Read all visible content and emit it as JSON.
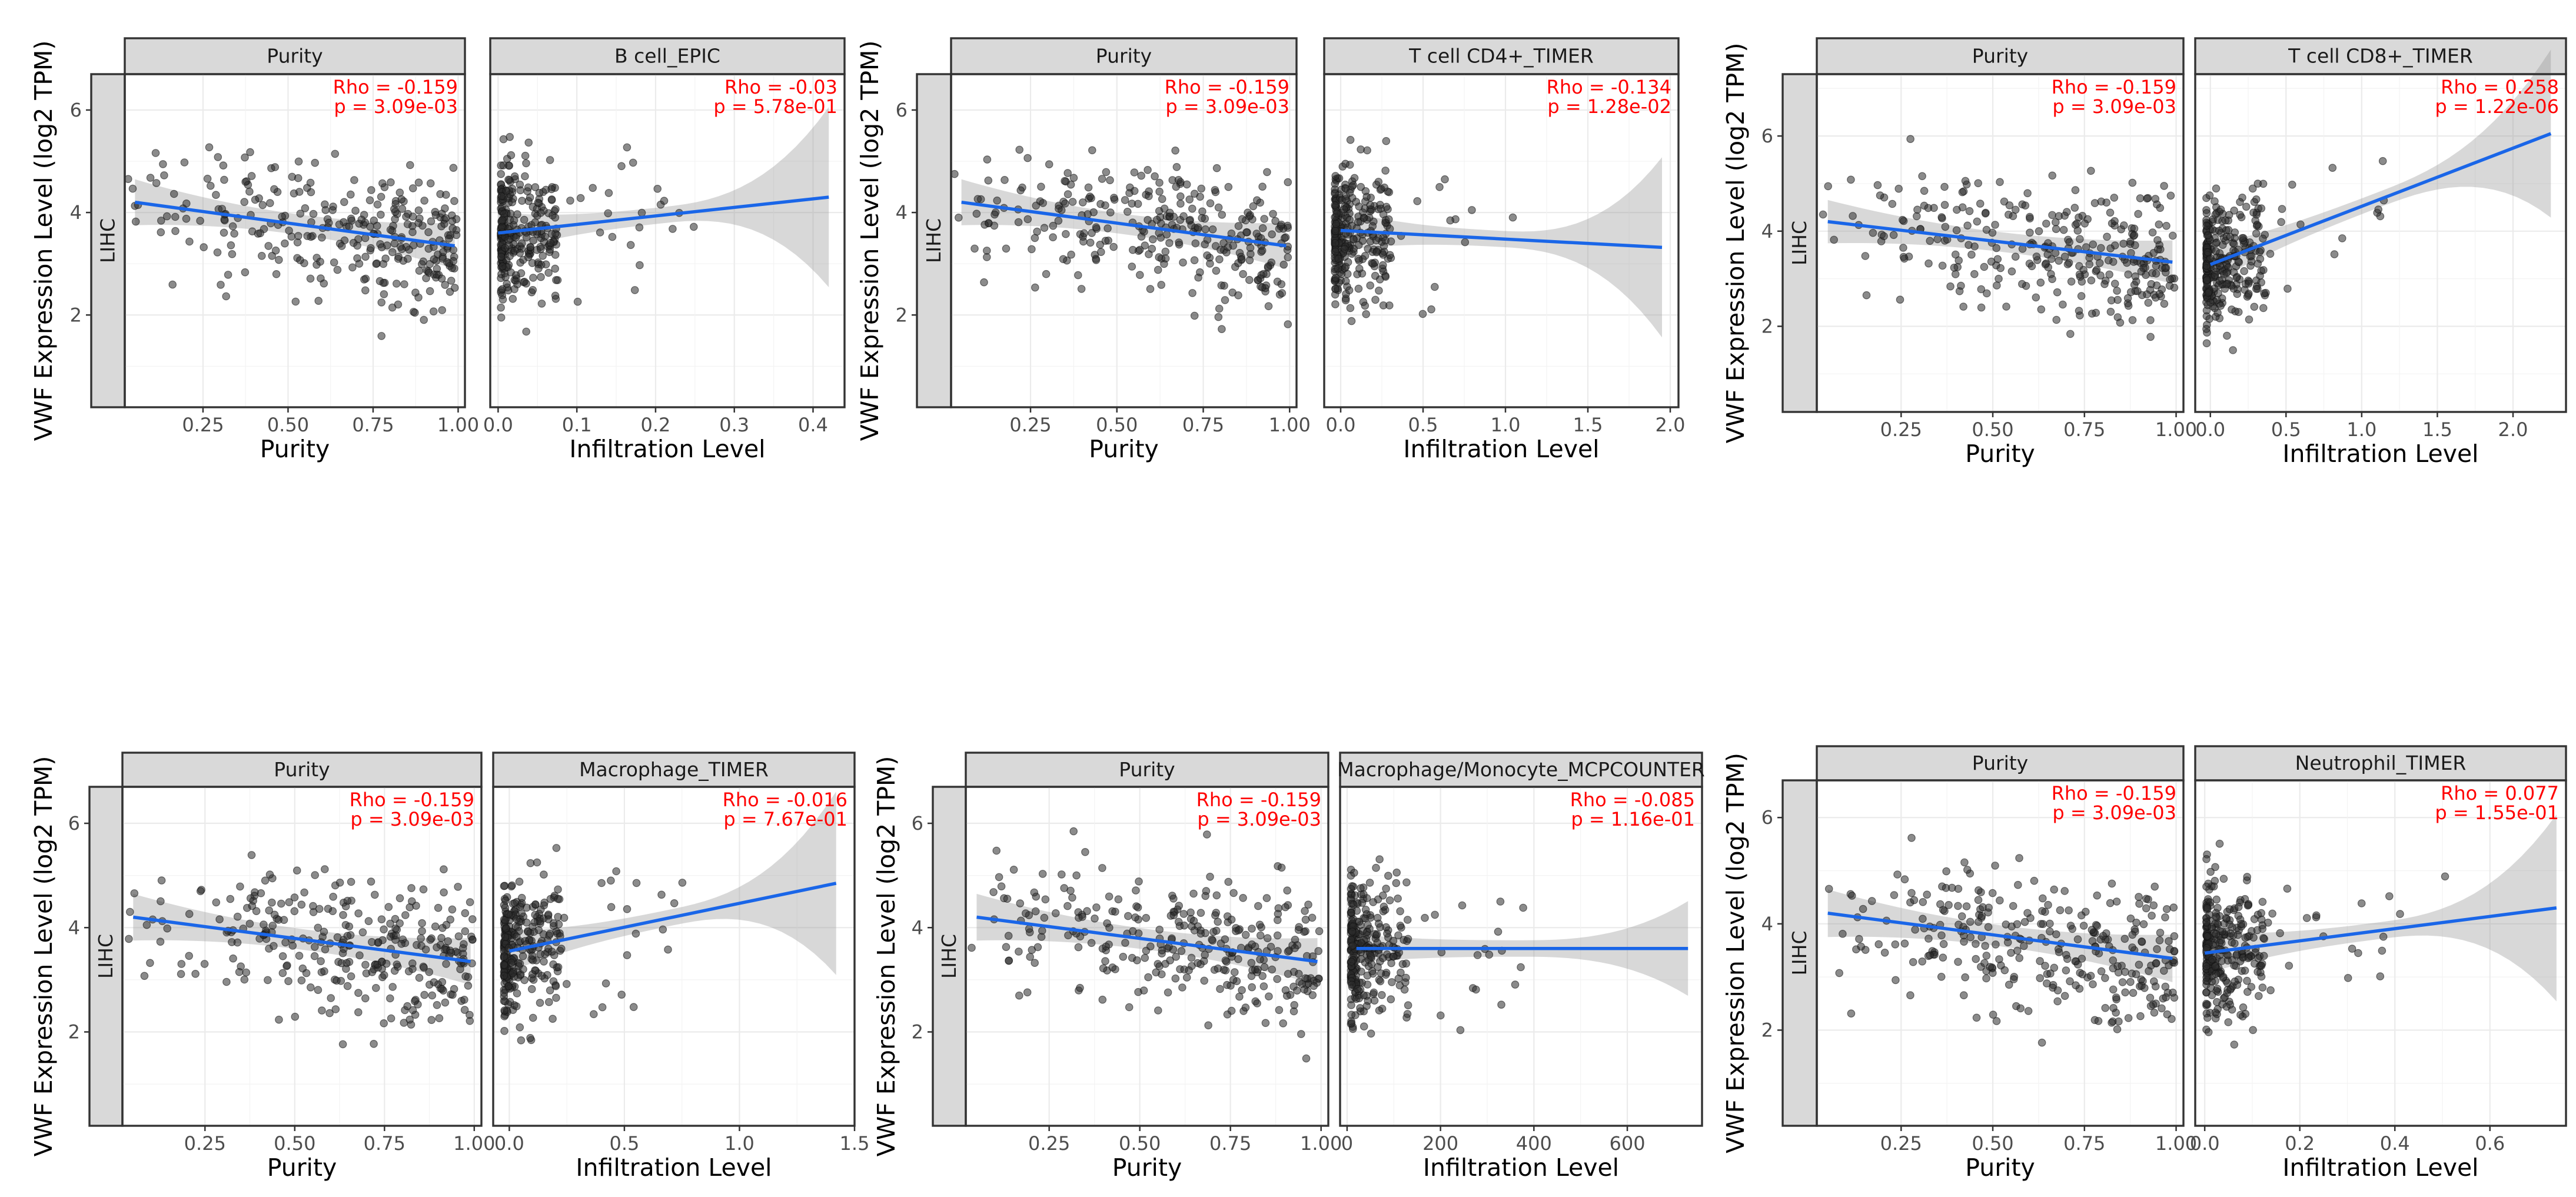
{
  "figure": {
    "ylabel": "VWF Expression Level (log2 TPM)",
    "row_label": "LIHC"
  },
  "chart_data": [
    {
      "type": "scatter",
      "panels": [
        {
          "strip": "Purity",
          "xlabel": "Purity",
          "xlim": [
            0.02,
            1.02
          ],
          "xticks": [
            0.25,
            0.5,
            0.75,
            1.0
          ],
          "xtick_labels": [
            "0.25",
            "0.50",
            "0.75",
            "1.00"
          ],
          "fit": {
            "x": [
              0.05,
              0.99
            ],
            "y": [
              4.2,
              3.35
            ]
          },
          "rho": "Rho = -0.159",
          "p": "p = 3.09e-03"
        },
        {
          "strip": "B cell_EPIC",
          "xlabel": "Infiltration Level",
          "xlim": [
            -0.01,
            0.44
          ],
          "xticks": [
            0.0,
            0.1,
            0.2,
            0.3,
            0.4
          ],
          "xtick_labels": [
            "0.0",
            "0.1",
            "0.2",
            "0.3",
            "0.4"
          ],
          "fit": {
            "x": [
              0.0,
              0.42
            ],
            "y": [
              3.6,
              4.3
            ]
          },
          "rho": "Rho = -0.03",
          "p": "p = 5.78e-01"
        }
      ],
      "ylim": [
        0.2,
        6.7
      ],
      "yticks": [
        2,
        4,
        6
      ],
      "ytick_labels": [
        "2",
        "4",
        "6"
      ]
    },
    {
      "type": "scatter",
      "panels": [
        {
          "strip": "Purity",
          "xlabel": "Purity",
          "xlim": [
            0.02,
            1.02
          ],
          "xticks": [
            0.25,
            0.5,
            0.75,
            1.0
          ],
          "xtick_labels": [
            "0.25",
            "0.50",
            "0.75",
            "1.00"
          ],
          "fit": {
            "x": [
              0.05,
              0.99
            ],
            "y": [
              4.2,
              3.35
            ]
          },
          "rho": "Rho = -0.159",
          "p": "p = 3.09e-03"
        },
        {
          "strip": "T cell CD4+_TIMER",
          "xlabel": "Infiltration Level",
          "xlim": [
            -0.1,
            2.05
          ],
          "xticks": [
            0.0,
            0.5,
            1.0,
            1.5,
            2.0
          ],
          "xtick_labels": [
            "0.0",
            "0.5",
            "1.0",
            "1.5",
            "2.0"
          ],
          "fit": {
            "x": [
              0.0,
              1.95
            ],
            "y": [
              3.65,
              3.32
            ]
          },
          "rho": "Rho = -0.134",
          "p": "p = 1.28e-02"
        }
      ],
      "ylim": [
        0.2,
        6.7
      ],
      "yticks": [
        2,
        4,
        6
      ],
      "ytick_labels": [
        "2",
        "4",
        "6"
      ]
    },
    {
      "type": "scatter",
      "panels": [
        {
          "strip": "Purity",
          "xlabel": "Purity",
          "xlim": [
            0.02,
            1.02
          ],
          "xticks": [
            0.25,
            0.5,
            0.75,
            1.0
          ],
          "xtick_labels": [
            "0.25",
            "0.50",
            "0.75",
            "1.00"
          ],
          "fit": {
            "x": [
              0.05,
              0.99
            ],
            "y": [
              4.2,
              3.35
            ]
          },
          "rho": "Rho = -0.159",
          "p": "p = 3.09e-03"
        },
        {
          "strip": "T cell CD8+_TIMER",
          "xlabel": "Infiltration Level",
          "xlim": [
            -0.1,
            2.35
          ],
          "xticks": [
            0.0,
            0.5,
            1.0,
            1.5,
            2.0
          ],
          "xtick_labels": [
            "0.0",
            "0.5",
            "1.0",
            "1.5",
            "2.0"
          ],
          "fit": {
            "x": [
              0.0,
              2.25
            ],
            "y": [
              3.3,
              6.05
            ]
          },
          "rho": "Rho = 0.258",
          "p": "p = 1.22e-06"
        }
      ],
      "ylim": [
        0.2,
        7.3
      ],
      "yticks": [
        2,
        4,
        6
      ],
      "ytick_labels": [
        "2",
        "4",
        "6"
      ]
    },
    {
      "type": "scatter",
      "panels": [
        {
          "strip": "Purity",
          "xlabel": "Purity",
          "xlim": [
            0.02,
            1.02
          ],
          "xticks": [
            0.25,
            0.5,
            0.75,
            1.0
          ],
          "xtick_labels": [
            "0.25",
            "0.50",
            "0.75",
            "1.00"
          ],
          "fit": {
            "x": [
              0.05,
              0.99
            ],
            "y": [
              4.2,
              3.35
            ]
          },
          "rho": "Rho = -0.159",
          "p": "p = 3.09e-03"
        },
        {
          "strip": "Macrophage_TIMER",
          "xlabel": "Infiltration Level",
          "xlim": [
            -0.07,
            1.5
          ],
          "xticks": [
            0.0,
            0.5,
            1.0,
            1.5
          ],
          "xtick_labels": [
            "0.0",
            "0.5",
            "1.0",
            "1.5"
          ],
          "fit": {
            "x": [
              0.0,
              1.42
            ],
            "y": [
              3.55,
              4.85
            ]
          },
          "rho": "Rho = -0.016",
          "p": "p = 7.67e-01"
        }
      ],
      "ylim": [
        0.2,
        6.7
      ],
      "yticks": [
        2,
        4,
        6
      ],
      "ytick_labels": [
        "2",
        "4",
        "6"
      ]
    },
    {
      "type": "scatter",
      "panels": [
        {
          "strip": "Purity",
          "xlabel": "Purity",
          "xlim": [
            0.02,
            1.02
          ],
          "xticks": [
            0.25,
            0.5,
            0.75,
            1.0
          ],
          "xtick_labels": [
            "0.25",
            "0.50",
            "0.75",
            "1.00"
          ],
          "fit": {
            "x": [
              0.05,
              0.99
            ],
            "y": [
              4.2,
              3.35
            ]
          },
          "rho": "Rho = -0.159",
          "p": "p = 3.09e-03"
        },
        {
          "strip": "Macrophage/Monocyte_MCPCOUNTER",
          "xlabel": "Infiltration Level",
          "xlim": [
            -15,
            760
          ],
          "xticks": [
            0,
            200,
            400,
            600
          ],
          "xtick_labels": [
            "0",
            "200",
            "400",
            "600"
          ],
          "fit": {
            "x": [
              20,
              730
            ],
            "y": [
              3.6,
              3.6
            ]
          },
          "rho": "Rho = -0.085",
          "p": "p = 1.16e-01"
        }
      ],
      "ylim": [
        0.2,
        6.7
      ],
      "yticks": [
        2,
        4,
        6
      ],
      "ytick_labels": [
        "2",
        "4",
        "6"
      ]
    },
    {
      "type": "scatter",
      "panels": [
        {
          "strip": "Purity",
          "xlabel": "Purity",
          "xlim": [
            0.02,
            1.02
          ],
          "xticks": [
            0.25,
            0.5,
            0.75,
            1.0
          ],
          "xtick_labels": [
            "0.25",
            "0.50",
            "0.75",
            "1.00"
          ],
          "fit": {
            "x": [
              0.05,
              0.99
            ],
            "y": [
              4.2,
              3.35
            ]
          },
          "rho": "Rho = -0.159",
          "p": "p = 3.09e-03"
        },
        {
          "strip": "Neutrophil_TIMER",
          "xlabel": "Infiltration Level",
          "xlim": [
            -0.02,
            0.76
          ],
          "xticks": [
            0.0,
            0.2,
            0.4,
            0.6
          ],
          "xtick_labels": [
            "0.0",
            "0.2",
            "0.4",
            "0.6"
          ],
          "fit": {
            "x": [
              0.0,
              0.74
            ],
            "y": [
              3.45,
              4.3
            ]
          },
          "rho": "Rho = 0.077",
          "p": "p = 1.55e-01"
        }
      ],
      "ylim": [
        0.2,
        6.7
      ],
      "yticks": [
        2,
        4,
        6
      ],
      "ytick_labels": [
        "2",
        "4",
        "6"
      ]
    }
  ]
}
